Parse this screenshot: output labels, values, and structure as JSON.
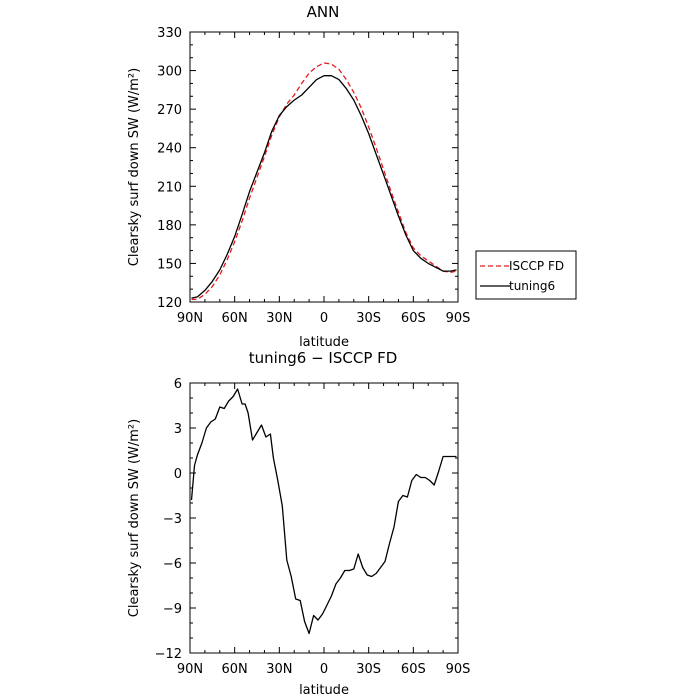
{
  "chart_data": [
    {
      "type": "line",
      "title": "ANN",
      "xlabel": "latitude",
      "ylabel": "Clearsky surf down SW (W/m²)",
      "xlim": [
        -90,
        90
      ],
      "ylim": [
        120,
        330
      ],
      "x_ticks": [
        -90,
        -60,
        -30,
        0,
        30,
        60,
        90
      ],
      "x_tick_labels": [
        "90N",
        "60N",
        "30N",
        "0",
        "30S",
        "60S",
        "90S"
      ],
      "y_ticks": [
        120,
        150,
        180,
        210,
        240,
        270,
        300,
        330
      ],
      "y_tick_labels": [
        "120",
        "150",
        "180",
        "210",
        "240",
        "270",
        "300",
        "330"
      ],
      "grid": false,
      "legend": "outside-right",
      "series": [
        {
          "name": "ISCCP FD",
          "color": "#e41a1c",
          "dash": "dashed",
          "x": [
            -89,
            -85,
            -80,
            -75,
            -70,
            -65,
            -60,
            -55,
            -50,
            -45,
            -40,
            -35,
            -30,
            -25,
            -20,
            -15,
            -10,
            -5,
            0,
            5,
            10,
            15,
            20,
            25,
            30,
            35,
            40,
            45,
            50,
            55,
            60,
            65,
            70,
            75,
            80,
            85,
            89
          ],
          "values": [
            122,
            122,
            126,
            132,
            141,
            153,
            167,
            183,
            201,
            217,
            233,
            250,
            264,
            274,
            281,
            290,
            298,
            303,
            306,
            305,
            301,
            293,
            283,
            271,
            256,
            240,
            223,
            206,
            190,
            174,
            162,
            156,
            152,
            148,
            144,
            143,
            144
          ]
        },
        {
          "name": "tuning6",
          "color": "#000000",
          "dash": "solid",
          "x": [
            -89,
            -85,
            -80,
            -75,
            -70,
            -65,
            -60,
            -55,
            -50,
            -45,
            -40,
            -35,
            -30,
            -25,
            -20,
            -15,
            -10,
            -5,
            0,
            5,
            10,
            15,
            20,
            25,
            30,
            35,
            40,
            45,
            50,
            55,
            60,
            65,
            70,
            75,
            80,
            85,
            89
          ],
          "values": [
            123,
            124,
            129,
            136,
            145,
            157,
            171,
            188,
            206,
            221,
            236,
            253,
            265,
            272,
            277,
            281,
            287,
            293,
            296,
            296,
            293,
            286,
            277,
            265,
            251,
            235,
            219,
            203,
            187,
            172,
            160,
            154,
            150,
            147,
            144,
            144,
            145
          ]
        }
      ]
    },
    {
      "type": "line",
      "title": "tuning6 − ISCCP FD",
      "xlabel": "latitude",
      "ylabel": "Clearsky surf down SW (W/m²)",
      "xlim": [
        -90,
        90
      ],
      "ylim": [
        -12,
        6
      ],
      "x_ticks": [
        -90,
        -60,
        -30,
        0,
        30,
        60,
        90
      ],
      "x_tick_labels": [
        "90N",
        "60N",
        "30N",
        "0",
        "30S",
        "60S",
        "90S"
      ],
      "y_ticks": [
        -12,
        -9,
        -6,
        -3,
        0,
        3,
        6
      ],
      "y_tick_labels": [
        "−12",
        "−9",
        "−6",
        "−3",
        "0",
        "3",
        "6"
      ],
      "grid": false,
      "series": [
        {
          "color": "#000000",
          "dash": "solid",
          "x": [
            -89,
            -87,
            -85,
            -82,
            -79,
            -76,
            -73,
            -70,
            -67,
            -64,
            -61,
            -58,
            -55,
            -53,
            -51,
            -48,
            -45,
            -42,
            -39,
            -36,
            -34,
            -31,
            -28,
            -25,
            -22,
            -19,
            -16,
            -13,
            -10,
            -7,
            -4,
            -1,
            2,
            5,
            8,
            11,
            14,
            17,
            20,
            23,
            26,
            29,
            32,
            35,
            38,
            41,
            44,
            47,
            50,
            53,
            56,
            59,
            62,
            65,
            68,
            71,
            74,
            77,
            80,
            83,
            86,
            89
          ],
          "values": [
            -1.8,
            0.5,
            1.2,
            2.0,
            3.0,
            3.4,
            3.6,
            4.4,
            4.3,
            4.8,
            5.1,
            5.6,
            4.6,
            4.6,
            4.0,
            2.2,
            2.7,
            3.2,
            2.4,
            2.6,
            1.0,
            -0.5,
            -2.2,
            -5.8,
            -6.9,
            -8.4,
            -8.5,
            -9.9,
            -10.7,
            -9.5,
            -9.8,
            -9.4,
            -8.8,
            -8.2,
            -7.4,
            -7.0,
            -6.5,
            -6.5,
            -6.4,
            -5.4,
            -6.3,
            -6.8,
            -6.9,
            -6.7,
            -6.3,
            -5.9,
            -4.7,
            -3.6,
            -1.9,
            -1.5,
            -1.6,
            -0.5,
            -0.1,
            -0.3,
            -0.3,
            -0.5,
            -0.8,
            0.1,
            1.1,
            1.1,
            1.1,
            1.1
          ]
        }
      ]
    }
  ]
}
